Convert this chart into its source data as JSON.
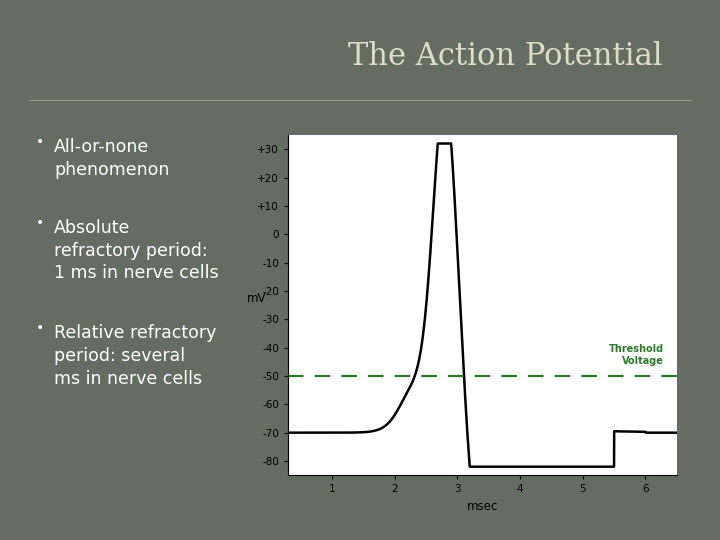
{
  "title": "The Action Potential",
  "title_color": "#ddddc8",
  "title_fontsize": 22,
  "bg_color": "#5e6659",
  "slide_bg": "#656d62",
  "bullet_points": [
    "All-or-none\nphenomenon",
    "Absolute\nrefractory period:\n1 ms in nerve cells",
    "Relative refractory\nperiod: several\nms in nerve cells"
  ],
  "bullet_color": "#ffffff",
  "bullet_fontsize": 12.5,
  "chart_bg": "#ffffff",
  "threshold_color": "#2a7a2a",
  "threshold_value": -50,
  "ylabel": "mV",
  "xlabel": "msec",
  "yticks": [
    30,
    20,
    10,
    0,
    -10,
    -20,
    -30,
    -40,
    -50,
    -60,
    -70,
    -80
  ],
  "ytick_labels": [
    "+30",
    "+20",
    "+10",
    "0",
    "-10",
    "-20",
    "-30",
    "-40",
    "-50",
    "-60",
    "-70",
    "-80"
  ],
  "xticks": [
    1,
    2,
    3,
    4,
    5,
    6
  ],
  "xlim": [
    0.3,
    6.5
  ],
  "ylim": [
    -85,
    35
  ]
}
